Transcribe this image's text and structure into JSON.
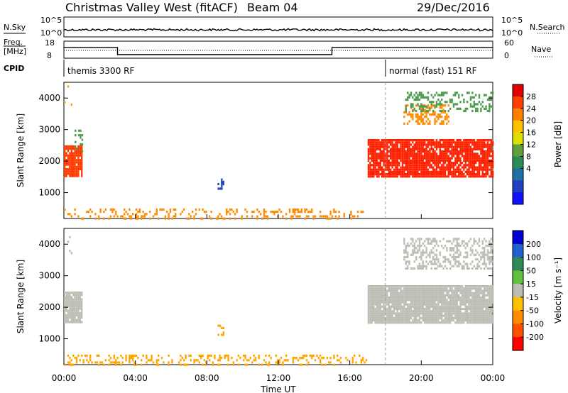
{
  "header": {
    "title": "Christmas Valley West (fitACF)",
    "beam": "Beam 04",
    "date": "29/Dec/2016"
  },
  "summary": {
    "nsky_label": "N.Sky",
    "nsearch_label": "N.Search",
    "freq_label_line1": "Freq.",
    "freq_label_line2": "[MHz]",
    "nave_label": "Nave",
    "cpid_label": "CPID",
    "left_ticks_top": [
      "10^5",
      "10^0"
    ],
    "right_ticks_top": [
      "10^5",
      "10^0"
    ],
    "left_ticks_freq": [
      "18",
      "8"
    ],
    "right_ticks_nave": [
      "60",
      "0"
    ],
    "cpid_segments": [
      {
        "label": "themis 3300 RF",
        "start_hour": 0,
        "end_hour": 18
      },
      {
        "label": "normal (fast) 151 RF",
        "start_hour": 18,
        "end_hour": 24
      }
    ],
    "freq_steps": [
      {
        "start_hour": 0,
        "end_hour": 3,
        "mhz": 14.3
      },
      {
        "start_hour": 3,
        "end_hour": 15,
        "mhz": 10.1
      },
      {
        "start_hour": 15,
        "end_hour": 24,
        "mhz": 14.3
      }
    ]
  },
  "xaxis": {
    "label": "Time UT",
    "ticks": [
      "00:00",
      "04:00",
      "08:00",
      "12:00",
      "16:00",
      "20:00",
      "00:00"
    ]
  },
  "colors": {
    "ground_scatter": "#bdbdb5"
  },
  "chart_data": [
    {
      "type": "heatmap",
      "ylabel": "Slant Range [km]",
      "yticks": [
        1000,
        2000,
        3000,
        4000
      ],
      "ylim": [
        180,
        4500
      ],
      "xlim": [
        0,
        24
      ],
      "colorbar": {
        "label": "Power [dB]",
        "ticks": [
          "28",
          "24",
          "20",
          "16",
          "12",
          "8",
          "4"
        ],
        "colors": [
          "#e00000",
          "#ff4000",
          "#ff8000",
          "#ffc000",
          "#e0e000",
          "#60a040",
          "#2e8b57",
          "#1f6fa0",
          "#2040c0",
          "#1010ff"
        ]
      },
      "regions": [
        {
          "hour_start": 0.0,
          "hour_end": 1.0,
          "range_start": 1500,
          "range_end": 2500,
          "color": "#ff3a00",
          "density": 0.9
        },
        {
          "hour_start": 0.6,
          "hour_end": 1.0,
          "range_start": 2300,
          "range_end": 3000,
          "color": "#4c9a4c",
          "density": 0.3
        },
        {
          "hour_start": 0.0,
          "hour_end": 0.5,
          "range_start": 3700,
          "range_end": 4400,
          "color": "#ffa500",
          "density": 0.1
        },
        {
          "hour_start": 0.0,
          "hour_end": 17.0,
          "range_start": 180,
          "range_end": 500,
          "color": "#ff8c00",
          "density": 0.25
        },
        {
          "hour_start": 8.6,
          "hour_end": 8.9,
          "range_start": 1150,
          "range_end": 1450,
          "color": "#2040c0",
          "density": 0.4
        },
        {
          "hour_start": 17.0,
          "hour_end": 24.0,
          "range_start": 1500,
          "range_end": 2700,
          "color": "#ff2000",
          "density": 0.9
        },
        {
          "hour_start": 19.0,
          "hour_end": 21.5,
          "range_start": 3200,
          "range_end": 3800,
          "color": "#ff8c00",
          "density": 0.5
        },
        {
          "hour_start": 19.0,
          "hour_end": 24.0,
          "range_start": 3600,
          "range_end": 4200,
          "color": "#4c9a4c",
          "density": 0.3
        }
      ]
    },
    {
      "type": "heatmap",
      "ylabel": "Slant Range [km]",
      "yticks": [
        1000,
        2000,
        3000,
        4000
      ],
      "ylim": [
        180,
        4500
      ],
      "xlim": [
        0,
        24
      ],
      "colorbar": {
        "label": "Velocity [m s⁻¹]",
        "ticks": [
          "200",
          "100",
          "50",
          "15",
          "-15",
          "-50",
          "-100",
          "-200"
        ],
        "colors": [
          "#0000d0",
          "#2060d0",
          "#2e8b57",
          "#60c040",
          "#bdbdb5",
          "#ffc000",
          "#ff8c00",
          "#ff5000",
          "#ff0000"
        ]
      },
      "regions": [
        {
          "hour_start": 0.0,
          "hour_end": 1.0,
          "range_start": 1500,
          "range_end": 2500,
          "color": "#bdbdb5",
          "density": 0.95
        },
        {
          "hour_start": 0.0,
          "hour_end": 0.5,
          "range_start": 3700,
          "range_end": 4400,
          "color": "#bdbdb5",
          "density": 0.15
        },
        {
          "hour_start": 0.0,
          "hour_end": 17.0,
          "range_start": 180,
          "range_end": 500,
          "color": "#ffa500",
          "density": 0.25
        },
        {
          "hour_start": 8.6,
          "hour_end": 8.9,
          "range_start": 1150,
          "range_end": 1450,
          "color": "#ffa500",
          "density": 0.4
        },
        {
          "hour_start": 17.0,
          "hour_end": 24.0,
          "range_start": 1500,
          "range_end": 2700,
          "color": "#bdbdb5",
          "density": 0.95
        },
        {
          "hour_start": 19.0,
          "hour_end": 24.0,
          "range_start": 3200,
          "range_end": 4200,
          "color": "#bdbdb5",
          "density": 0.4
        }
      ]
    }
  ]
}
